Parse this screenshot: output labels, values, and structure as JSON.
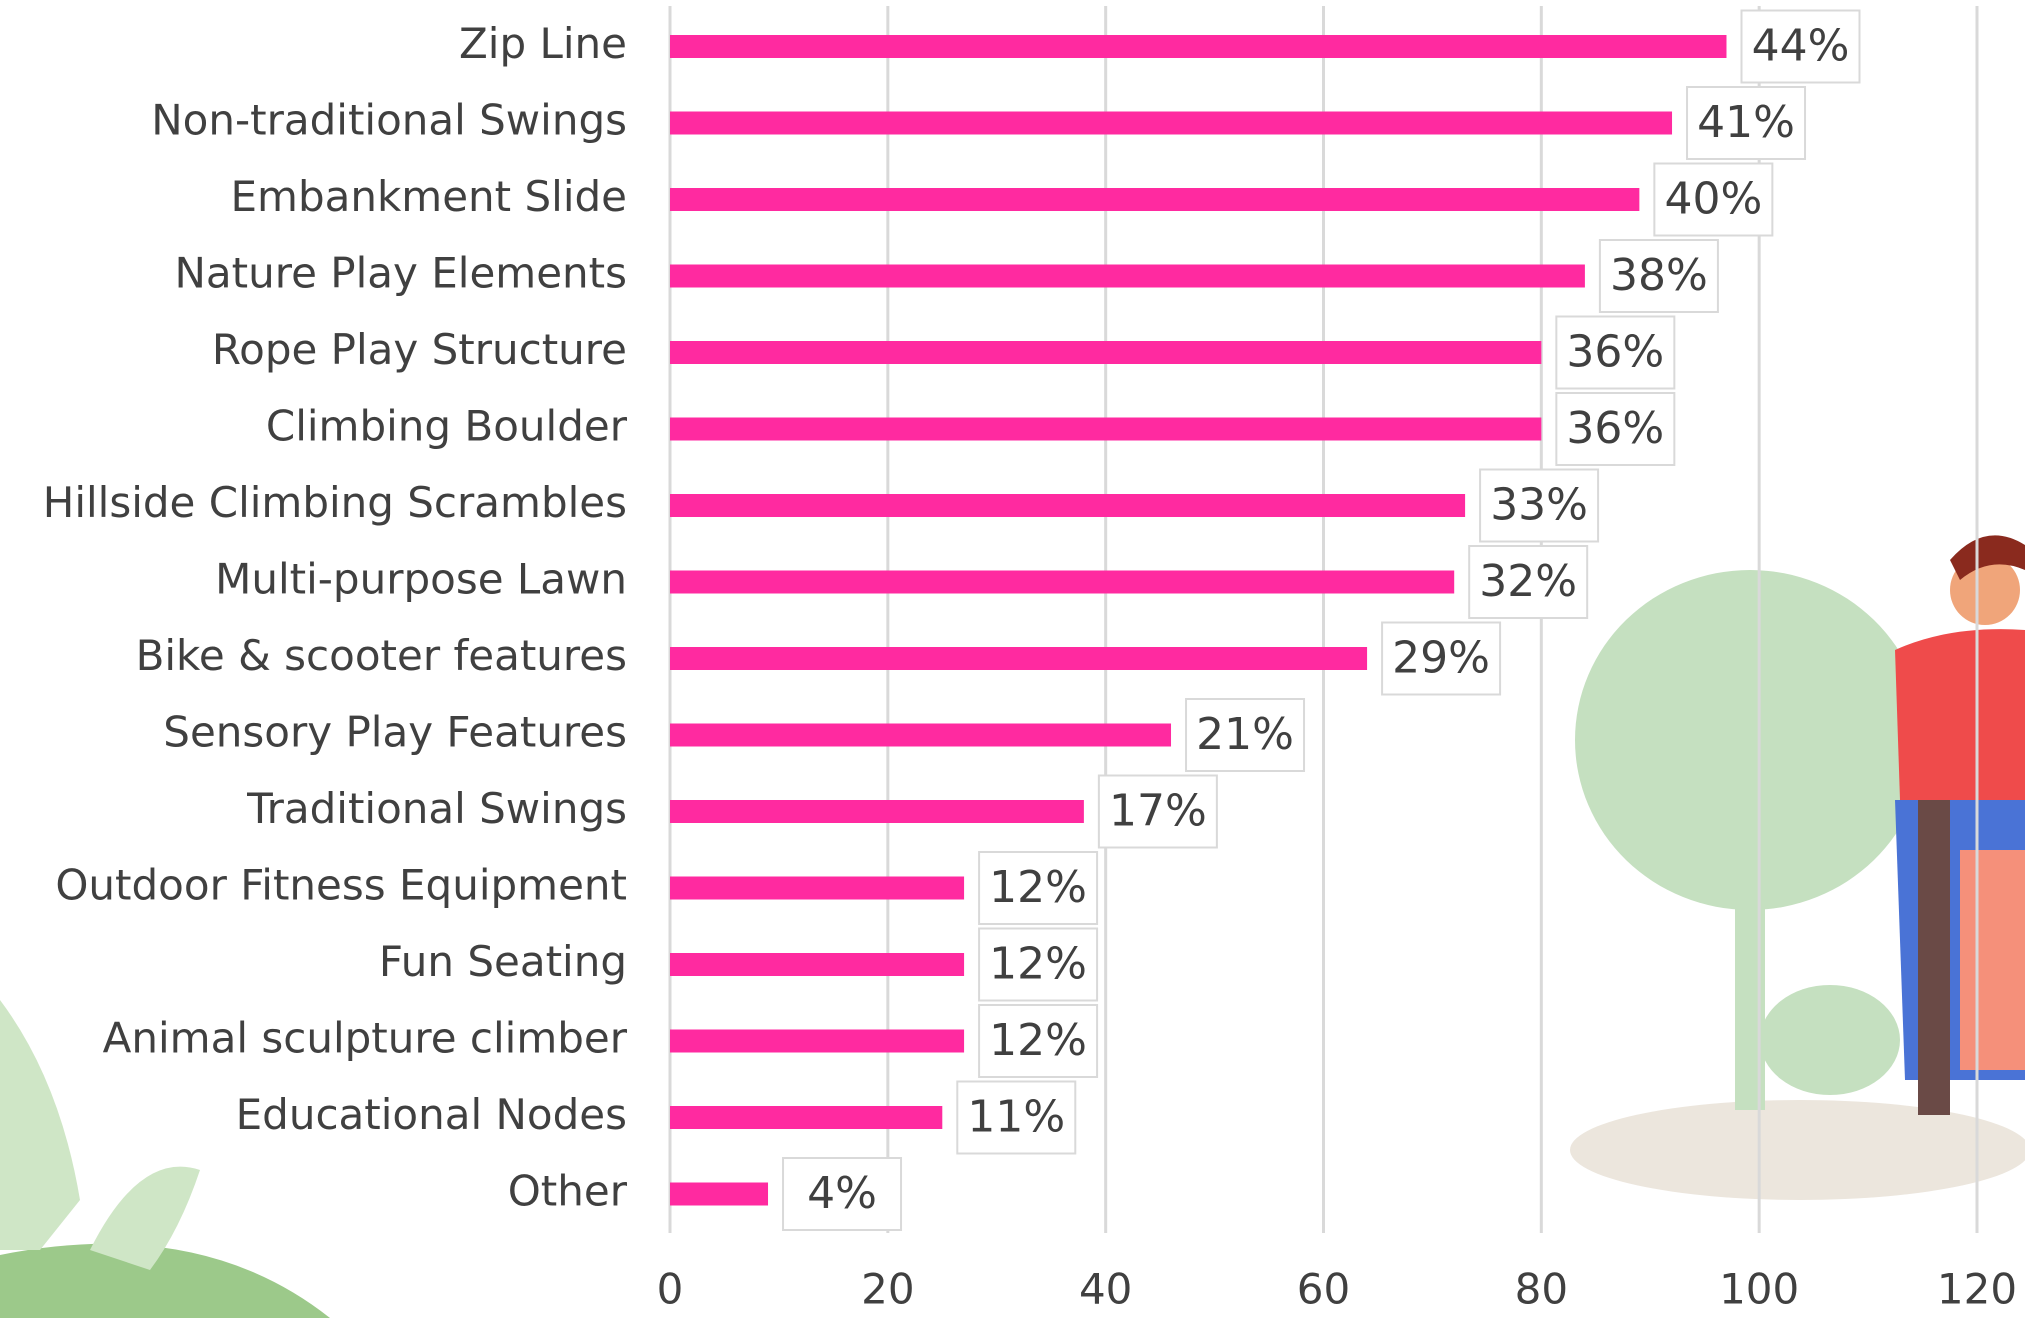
{
  "chart_data": {
    "type": "barh",
    "categories": [
      "Zip Line",
      "Non-traditional Swings",
      "Embankment Slide",
      "Nature Play Elements",
      "Rope Play Structure",
      "Climbing Boulder",
      "Hillside Climbing Scrambles",
      "Multi-purpose Lawn",
      "Bike & scooter features",
      "Sensory Play Features",
      "Traditional Swings",
      "Outdoor Fitness Equipment",
      "Fun Seating",
      "Animal sculpture climber",
      "Educational Nodes",
      "Other"
    ],
    "values": [
      97,
      92,
      89,
      84,
      80,
      80,
      73,
      72,
      64,
      46,
      38,
      27,
      27,
      27,
      25,
      9
    ],
    "value_labels": [
      "44%",
      "41%",
      "40%",
      "38%",
      "36%",
      "36%",
      "33%",
      "32%",
      "29%",
      "21%",
      "17%",
      "12%",
      "12%",
      "12%",
      "11%",
      "4%"
    ],
    "color": "#ff2aa0",
    "xlim": [
      0,
      120
    ],
    "xticks": [
      0,
      20,
      40,
      60,
      80,
      100,
      120
    ],
    "grid": true
  }
}
